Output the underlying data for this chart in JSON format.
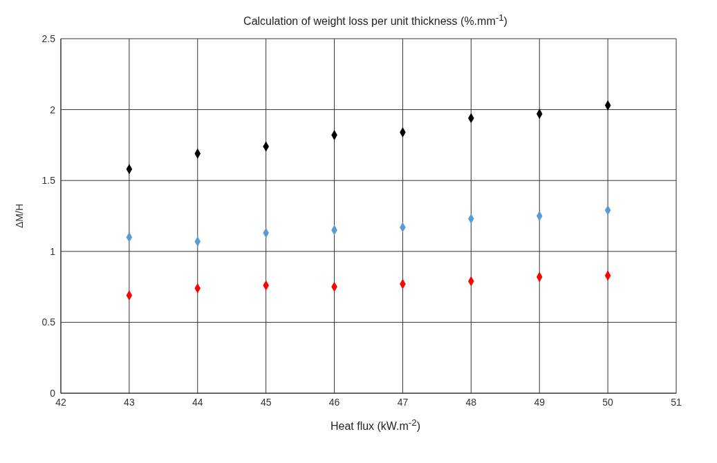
{
  "chart_data": {
    "type": "scatter",
    "title": "Calculation of weight loss per unit thickness (%.mm$^{-1}$)",
    "xlabel": "Heat flux (kW.m$^{-2}$)",
    "ylabel": "ΔM/H",
    "x": [
      43,
      44,
      45,
      46,
      47,
      48,
      49,
      50
    ],
    "series": [
      {
        "color": "#000000",
        "values": [
          1.58,
          1.69,
          1.74,
          1.82,
          1.84,
          1.94,
          1.97,
          2.03
        ]
      },
      {
        "color": "#5b9bd5",
        "values": [
          1.1,
          1.07,
          1.13,
          1.15,
          1.17,
          1.23,
          1.25,
          1.29
        ]
      },
      {
        "color": "#ff0000",
        "values": [
          0.69,
          0.74,
          0.76,
          0.75,
          0.77,
          0.79,
          0.82,
          0.83
        ]
      }
    ],
    "xlim": [
      42,
      51
    ],
    "xticks": [
      42,
      43,
      44,
      45,
      46,
      47,
      48,
      49,
      50,
      51
    ],
    "ylim": [
      0,
      2.5
    ],
    "yticks": [
      0,
      0.5,
      1,
      1.5,
      2,
      2.5
    ],
    "grid": true,
    "marker": "diamond"
  }
}
